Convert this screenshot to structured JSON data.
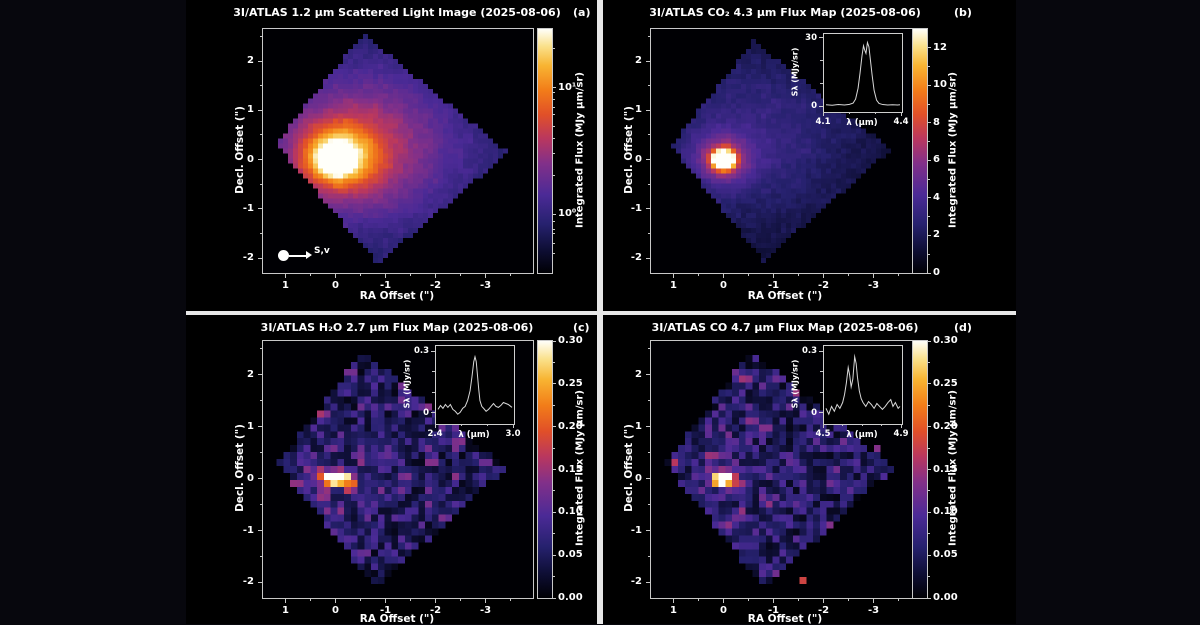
{
  "figure": {
    "page_background": "#07070d",
    "background": "#000000",
    "divider_color": "#e8e8e8",
    "text_color": "#ffffff",
    "axis_color": "#c8c8c8",
    "spectrum_color": "#d8d8d8",
    "colormap": [
      [
        0,
        [
          0,
          0,
          4
        ]
      ],
      [
        0.1,
        [
          15,
          15,
          55
        ]
      ],
      [
        0.2,
        [
          38,
          33,
          110
        ]
      ],
      [
        0.32,
        [
          75,
          42,
          150
        ]
      ],
      [
        0.45,
        [
          130,
          48,
          137
        ]
      ],
      [
        0.55,
        [
          185,
          55,
          95
        ]
      ],
      [
        0.65,
        [
          225,
          80,
          40
        ]
      ],
      [
        0.75,
        [
          242,
          125,
          25
        ]
      ],
      [
        0.85,
        [
          248,
          180,
          50
        ]
      ],
      [
        0.93,
        [
          250,
          225,
          140
        ]
      ],
      [
        1,
        [
          255,
          255,
          250
        ]
      ]
    ]
  },
  "chart_data": [
    {
      "type": "heatmap",
      "tag": "(a)",
      "title": "3I/ATLAS 1.2 μm Scattered Light Image (2025-08-06)",
      "xlabel": "RA Offset (\")",
      "ylabel": "Decl. Offset (\")",
      "x_range": [
        1.45,
        -3.95
      ],
      "y_range": [
        -2.3,
        2.65
      ],
      "x_ticks": [
        1,
        0,
        -1,
        -2,
        -3
      ],
      "y_ticks": [
        2,
        1,
        0,
        -1,
        -2
      ],
      "colorbar": {
        "label": "Integrated Flux (MJy μm/sr)",
        "scale": "log",
        "ticks": [
          {
            "frac": 0.24,
            "label": "10¹"
          },
          {
            "frac": 0.76,
            "label": "10⁰"
          }
        ],
        "minor_fracs": [
          0.08,
          0.26,
          0.29,
          0.32,
          0.35,
          0.4,
          0.45,
          0.51,
          0.6,
          0.79,
          0.82,
          0.84,
          0.88,
          0.92
        ]
      },
      "marker": {
        "label": "S,v",
        "ra": 1.05,
        "dec": -1.95
      },
      "map": {
        "nx": 54,
        "ny": 49,
        "seed": 7,
        "base": 0.1,
        "noise": 0.07,
        "footprint": [
          [
            -0.55,
            2.55
          ],
          [
            1.2,
            0.32
          ],
          [
            -0.85,
            -2.12
          ],
          [
            -3.45,
            0.15
          ]
        ],
        "gaussians": [
          {
            "x": 0,
            "y": 0,
            "sx": 0.17,
            "sy": 0.15,
            "amp": 1.5
          },
          {
            "x": -0.05,
            "y": 0.05,
            "sx": 0.5,
            "sy": 0.42,
            "amp": 0.55
          },
          {
            "x": -0.35,
            "y": 0.2,
            "sx": 1.15,
            "sy": 0.95,
            "amp": 0.3
          },
          {
            "x": -0.95,
            "y": 0.45,
            "sx": 2.2,
            "sy": 1.7,
            "amp": 0.16
          }
        ]
      }
    },
    {
      "type": "heatmap",
      "tag": "(b)",
      "title": "3I/ATLAS CO₂ 4.3 μm Flux Map (2025-08-06)",
      "xlabel": "RA Offset (\")",
      "ylabel": "Decl. Offset (\")",
      "x_range": [
        1.45,
        -3.95
      ],
      "y_range": [
        -2.3,
        2.65
      ],
      "x_ticks": [
        1,
        0,
        -1,
        -2,
        -3
      ],
      "y_ticks": [
        2,
        1,
        0,
        -1,
        -2
      ],
      "colorbar": {
        "label": "Integrated Flux (MJy μm/sr)",
        "scale": "linear",
        "vmin": 0,
        "vmax": 13,
        "ticks": [
          {
            "value": 12,
            "label": "12"
          },
          {
            "value": 10,
            "label": "10"
          },
          {
            "value": 8,
            "label": "8"
          },
          {
            "value": 6,
            "label": "6"
          },
          {
            "value": 4,
            "label": "4"
          },
          {
            "value": 2,
            "label": "2"
          },
          {
            "value": 0,
            "label": "0"
          }
        ],
        "minor_values": [
          1,
          3,
          5,
          7,
          9,
          11
        ]
      },
      "inset": {
        "ylabel": "Sλ (MJy/sr)",
        "xlabel": "λ (μm)",
        "x_range": [
          4.1,
          4.4
        ],
        "y_range": [
          -2,
          32
        ],
        "x_ticks": [
          {
            "value": 4.1,
            "label": "4.1"
          },
          {
            "value": 4.4,
            "label": "4.4"
          }
        ],
        "x_minor": [
          4.2,
          4.3
        ],
        "y_ticks": [
          {
            "value": 30,
            "label": "30"
          },
          {
            "value": 0,
            "label": "0"
          }
        ],
        "y_minor": [
          10,
          20
        ],
        "points": [
          [
            4.1,
            0.4
          ],
          [
            4.125,
            0.2
          ],
          [
            4.15,
            0.5
          ],
          [
            4.175,
            0.3
          ],
          [
            4.195,
            0.6
          ],
          [
            4.21,
            1.2
          ],
          [
            4.22,
            3
          ],
          [
            4.23,
            8
          ],
          [
            4.238,
            15
          ],
          [
            4.246,
            23
          ],
          [
            4.252,
            27.5
          ],
          [
            4.257,
            25.5
          ],
          [
            4.262,
            24
          ],
          [
            4.268,
            29
          ],
          [
            4.274,
            27
          ],
          [
            4.28,
            21
          ],
          [
            4.287,
            14
          ],
          [
            4.295,
            7
          ],
          [
            4.305,
            2.5
          ],
          [
            4.315,
            1
          ],
          [
            4.33,
            0.5
          ],
          [
            4.35,
            0.3
          ],
          [
            4.37,
            0.4
          ],
          [
            4.39,
            0.3
          ],
          [
            4.4,
            0.4
          ]
        ]
      },
      "map": {
        "nx": 54,
        "ny": 49,
        "seed": 11,
        "base": 0.07,
        "noise": 0.07,
        "footprint": [
          [
            -0.6,
            2.4
          ],
          [
            1.05,
            0.28
          ],
          [
            -0.8,
            -2.05
          ],
          [
            -3.35,
            0.2
          ]
        ],
        "gaussians": [
          {
            "x": 0,
            "y": 0,
            "sx": 0.14,
            "sy": 0.12,
            "amp": 1.5
          },
          {
            "x": 0,
            "y": 0,
            "sx": 0.4,
            "sy": 0.35,
            "amp": 0.35
          },
          {
            "x": -0.55,
            "y": 0.5,
            "sx": 1.5,
            "sy": 1.25,
            "amp": 0.16
          }
        ]
      }
    },
    {
      "type": "heatmap",
      "tag": "(c)",
      "title": "3I/ATLAS H₂O 2.7 μm Flux Map (2025-08-06)",
      "xlabel": "RA Offset (\")",
      "ylabel": "Decl. Offset (\")",
      "x_range": [
        1.45,
        -3.95
      ],
      "y_range": [
        -2.3,
        2.65
      ],
      "x_ticks": [
        1,
        0,
        -1,
        -2,
        -3
      ],
      "y_ticks": [
        2,
        1,
        0,
        -1,
        -2
      ],
      "colorbar": {
        "label": "Integrated Flux (MJy μm/sr)",
        "scale": "linear",
        "vmin": 0,
        "vmax": 0.3,
        "ticks": [
          {
            "value": 0.3,
            "label": "0.30"
          },
          {
            "value": 0.25,
            "label": "0.25"
          },
          {
            "value": 0.2,
            "label": "0.20"
          },
          {
            "value": 0.15,
            "label": "0.15"
          },
          {
            "value": 0.1,
            "label": "0.10"
          },
          {
            "value": 0.05,
            "label": "0.05"
          },
          {
            "value": 0,
            "label": "0.00"
          }
        ],
        "minor_values": [
          0.025,
          0.075,
          0.125,
          0.175,
          0.225,
          0.275
        ]
      },
      "inset": {
        "ylabel": "Sλ (MJy/sr)",
        "xlabel": "λ (μm)",
        "x_range": [
          2.4,
          3.0
        ],
        "y_range": [
          -0.05,
          0.33
        ],
        "x_ticks": [
          {
            "value": 2.4,
            "label": "2.4"
          },
          {
            "value": 3.0,
            "label": "3.0"
          }
        ],
        "x_minor": [
          2.6,
          2.8
        ],
        "y_ticks": [
          {
            "value": 0.3,
            "label": "0.3"
          },
          {
            "value": 0,
            "label": "0"
          }
        ],
        "y_minor": [
          0.1,
          0.2
        ],
        "points": [
          [
            2.4,
            0.015
          ],
          [
            2.42,
            0.035
          ],
          [
            2.44,
            0.02
          ],
          [
            2.46,
            0.04
          ],
          [
            2.48,
            0.025
          ],
          [
            2.5,
            0.04
          ],
          [
            2.52,
            0.015
          ],
          [
            2.54,
            0.005
          ],
          [
            2.56,
            -0.01
          ],
          [
            2.58,
            0
          ],
          [
            2.6,
            0.02
          ],
          [
            2.62,
            0.03
          ],
          [
            2.64,
            0.06
          ],
          [
            2.66,
            0.11
          ],
          [
            2.675,
            0.18
          ],
          [
            2.69,
            0.26
          ],
          [
            2.7,
            0.285
          ],
          [
            2.71,
            0.26
          ],
          [
            2.72,
            0.19
          ],
          [
            2.73,
            0.12
          ],
          [
            2.74,
            0.06
          ],
          [
            2.755,
            0.03
          ],
          [
            2.77,
            0.02
          ],
          [
            2.79,
            0.005
          ],
          [
            2.81,
            0.015
          ],
          [
            2.83,
            0.03
          ],
          [
            2.85,
            0.045
          ],
          [
            2.87,
            0.03
          ],
          [
            2.89,
            0.025
          ],
          [
            2.91,
            0.035
          ],
          [
            2.93,
            0.05
          ],
          [
            2.95,
            0.045
          ],
          [
            2.97,
            0.04
          ],
          [
            2.99,
            0.03
          ],
          [
            3.0,
            0.025
          ]
        ]
      },
      "map": {
        "nx": 40,
        "ny": 37,
        "seed": 23,
        "base": 0.03,
        "noise": 0.45,
        "footprint": [
          [
            -0.55,
            2.45
          ],
          [
            1.15,
            0.28
          ],
          [
            -0.8,
            -2.1
          ],
          [
            -3.4,
            0.2
          ]
        ],
        "gaussians": [
          {
            "x": 0,
            "y": 0,
            "sx": 0.2,
            "sy": 0.1,
            "amp": 1.3
          },
          {
            "x": -0.1,
            "y": 0,
            "sx": 0.85,
            "sy": 0.7,
            "amp": 0.07
          }
        ]
      }
    },
    {
      "type": "heatmap",
      "tag": "(d)",
      "title": "3I/ATLAS CO 4.7 μm Flux Map (2025-08-06)",
      "xlabel": "RA Offset (\")",
      "ylabel": "Decl. Offset (\")",
      "x_range": [
        1.45,
        -3.95
      ],
      "y_range": [
        -2.3,
        2.65
      ],
      "x_ticks": [
        1,
        0,
        -1,
        -2,
        -3
      ],
      "y_ticks": [
        2,
        1,
        0,
        -1,
        -2
      ],
      "colorbar": {
        "label": "Integrated Flux (MJy μm/sr)",
        "scale": "linear",
        "vmin": 0,
        "vmax": 0.3,
        "ticks": [
          {
            "value": 0.3,
            "label": "0.30"
          },
          {
            "value": 0.25,
            "label": "0.25"
          },
          {
            "value": 0.2,
            "label": "0.20"
          },
          {
            "value": 0.15,
            "label": "0.15"
          },
          {
            "value": 0.1,
            "label": "0.10"
          },
          {
            "value": 0.05,
            "label": "0.05"
          },
          {
            "value": 0,
            "label": "0.00"
          }
        ],
        "minor_values": [
          0.025,
          0.075,
          0.125,
          0.175,
          0.225,
          0.275
        ]
      },
      "inset": {
        "ylabel": "Sλ (MJy/sr)",
        "xlabel": "λ (μm)",
        "x_range": [
          4.5,
          4.9
        ],
        "y_range": [
          -0.05,
          0.33
        ],
        "x_ticks": [
          {
            "value": 4.5,
            "label": "4.5"
          },
          {
            "value": 4.9,
            "label": "4.9"
          }
        ],
        "x_minor": [
          4.6,
          4.7,
          4.8
        ],
        "y_ticks": [
          {
            "value": 0.3,
            "label": "0.3"
          },
          {
            "value": 0,
            "label": "0"
          }
        ],
        "y_minor": [
          0.1,
          0.2
        ],
        "points": [
          [
            4.5,
            0.02
          ],
          [
            4.515,
            -0.01
          ],
          [
            4.53,
            0.03
          ],
          [
            4.545,
            0.005
          ],
          [
            4.56,
            0.04
          ],
          [
            4.575,
            0.02
          ],
          [
            4.59,
            0.05
          ],
          [
            4.6,
            0.09
          ],
          [
            4.61,
            0.15
          ],
          [
            4.62,
            0.23
          ],
          [
            4.628,
            0.19
          ],
          [
            4.636,
            0.13
          ],
          [
            4.645,
            0.17
          ],
          [
            4.655,
            0.285
          ],
          [
            4.663,
            0.25
          ],
          [
            4.67,
            0.18
          ],
          [
            4.68,
            0.11
          ],
          [
            4.69,
            0.07
          ],
          [
            4.7,
            0.05
          ],
          [
            4.715,
            0.03
          ],
          [
            4.73,
            0.055
          ],
          [
            4.745,
            0.04
          ],
          [
            4.76,
            0.02
          ],
          [
            4.775,
            0.045
          ],
          [
            4.79,
            0.03
          ],
          [
            4.805,
            0.015
          ],
          [
            4.82,
            0.03
          ],
          [
            4.835,
            0.05
          ],
          [
            4.85,
            0.065
          ],
          [
            4.862,
            0.03
          ],
          [
            4.875,
            0.05
          ],
          [
            4.89,
            0.02
          ],
          [
            4.9,
            0.03
          ]
        ]
      },
      "map": {
        "nx": 40,
        "ny": 37,
        "seed": 31,
        "base": 0.03,
        "noise": 0.45,
        "footprint": [
          [
            -0.55,
            2.45
          ],
          [
            1.15,
            0.28
          ],
          [
            -0.8,
            -2.1
          ],
          [
            -3.4,
            0.2
          ]
        ],
        "gaussians": [
          {
            "x": 0,
            "y": 0,
            "sx": 0.16,
            "sy": 0.1,
            "amp": 1.35
          },
          {
            "x": -0.1,
            "y": 0,
            "sx": 0.85,
            "sy": 0.7,
            "amp": 0.07
          }
        ],
        "hot_pixels": [
          {
            "ra": 1.0,
            "dec": 0.32,
            "v": 0.55
          },
          {
            "ra": -1.6,
            "dec": -2.0,
            "v": 0.6
          },
          {
            "ra": -0.35,
            "dec": 1.85,
            "v": 0.5
          },
          {
            "ra": -3.1,
            "dec": 0.6,
            "v": 0.45
          }
        ]
      }
    }
  ]
}
